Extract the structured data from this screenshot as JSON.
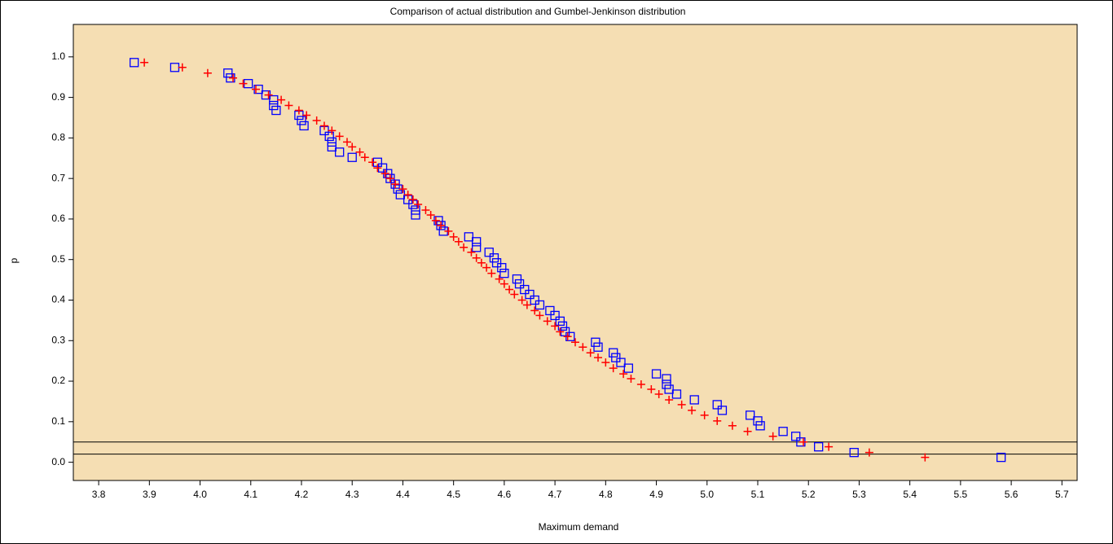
{
  "chart_data": {
    "type": "scatter",
    "title": "Comparison of actual distribution and Gumbel-Jenkinson distribution",
    "xlabel": "Maximum demand",
    "ylabel": "p",
    "background": "#f5deb3",
    "xlim": [
      3.75,
      5.73
    ],
    "ylim": [
      -0.045,
      1.08
    ],
    "xticks": [
      {
        "value": 3.8,
        "label": "3.8"
      },
      3.9,
      {
        "value": 4.0,
        "label": "4.0"
      },
      4.1,
      4.2,
      4.3,
      4.4,
      4.5,
      4.6,
      4.7,
      4.8,
      4.9,
      {
        "value": 5.0,
        "label": "5.0"
      },
      5.1,
      5.2,
      5.3,
      5.4,
      5.5,
      5.6,
      5.7
    ],
    "yticks": [
      {
        "value": 0.0,
        "label": "0.0"
      },
      0.1,
      0.2,
      0.3,
      0.4,
      0.5,
      0.6,
      0.7,
      0.8,
      0.9,
      {
        "value": 1.0,
        "label": "1.0"
      }
    ],
    "hlines": [
      0.05,
      0.02
    ],
    "grid": false,
    "series": [
      {
        "marker": "square",
        "color": "#0000ff",
        "x": [
          3.87,
          3.95,
          4.055,
          4.06,
          4.095,
          4.115,
          4.13,
          4.145,
          4.145,
          4.15,
          4.195,
          4.2,
          4.205,
          4.245,
          4.255,
          4.26,
          4.26,
          4.275,
          4.3,
          4.35,
          4.36,
          4.37,
          4.375,
          4.385,
          4.39,
          4.395,
          4.41,
          4.42,
          4.425,
          4.425,
          4.47,
          4.475,
          4.48,
          4.53,
          4.545,
          4.545,
          4.57,
          4.58,
          4.585,
          4.595,
          4.6,
          4.625,
          4.63,
          4.64,
          4.65,
          4.66,
          4.67,
          4.69,
          4.7,
          4.71,
          4.715,
          4.72,
          4.73,
          4.78,
          4.785,
          4.815,
          4.82,
          4.83,
          4.845,
          4.9,
          4.92,
          4.92,
          4.925,
          4.94,
          4.975,
          5.02,
          5.03,
          5.085,
          5.1,
          5.105,
          5.15,
          5.175,
          5.185,
          5.22,
          5.29,
          5.58
        ],
        "values": [
          0.986,
          0.974,
          0.96,
          0.948,
          0.934,
          0.92,
          0.906,
          0.894,
          0.88,
          0.868,
          0.856,
          0.843,
          0.83,
          0.818,
          0.804,
          0.79,
          0.778,
          0.765,
          0.752,
          0.74,
          0.726,
          0.712,
          0.7,
          0.686,
          0.674,
          0.66,
          0.648,
          0.636,
          0.622,
          0.61,
          0.596,
          0.584,
          0.57,
          0.556,
          0.544,
          0.53,
          0.518,
          0.504,
          0.492,
          0.48,
          0.466,
          0.452,
          0.44,
          0.426,
          0.414,
          0.4,
          0.388,
          0.374,
          0.362,
          0.348,
          0.336,
          0.322,
          0.31,
          0.296,
          0.284,
          0.27,
          0.258,
          0.246,
          0.232,
          0.218,
          0.206,
          0.192,
          0.18,
          0.168,
          0.154,
          0.142,
          0.128,
          0.116,
          0.102,
          0.09,
          0.076,
          0.064,
          0.05,
          0.038,
          0.024,
          0.012
        ]
      },
      {
        "marker": "plus",
        "color": "#ff0000",
        "x": [
          3.89,
          3.965,
          4.015,
          4.065,
          4.085,
          4.11,
          4.135,
          4.16,
          4.175,
          4.195,
          4.21,
          4.23,
          4.245,
          4.26,
          4.275,
          4.29,
          4.3,
          4.315,
          4.325,
          4.34,
          4.35,
          4.365,
          4.375,
          4.385,
          4.4,
          4.41,
          4.42,
          4.43,
          4.445,
          4.455,
          4.465,
          4.475,
          4.49,
          4.5,
          4.51,
          4.52,
          4.535,
          4.545,
          4.555,
          4.565,
          4.575,
          4.59,
          4.6,
          4.61,
          4.62,
          4.635,
          4.645,
          4.66,
          4.67,
          4.685,
          4.7,
          4.71,
          4.725,
          4.74,
          4.755,
          4.77,
          4.785,
          4.8,
          4.815,
          4.835,
          4.85,
          4.87,
          4.89,
          4.905,
          4.925,
          4.95,
          4.97,
          4.995,
          5.02,
          5.05,
          5.08,
          5.13,
          5.19,
          5.24,
          5.32,
          5.43
        ],
        "values": [
          0.986,
          0.974,
          0.96,
          0.948,
          0.934,
          0.92,
          0.906,
          0.894,
          0.88,
          0.868,
          0.856,
          0.843,
          0.83,
          0.818,
          0.804,
          0.79,
          0.778,
          0.765,
          0.752,
          0.74,
          0.726,
          0.712,
          0.7,
          0.686,
          0.674,
          0.66,
          0.648,
          0.636,
          0.622,
          0.61,
          0.596,
          0.584,
          0.57,
          0.556,
          0.544,
          0.53,
          0.518,
          0.504,
          0.492,
          0.48,
          0.466,
          0.452,
          0.44,
          0.426,
          0.414,
          0.4,
          0.388,
          0.374,
          0.362,
          0.348,
          0.336,
          0.322,
          0.31,
          0.296,
          0.284,
          0.27,
          0.258,
          0.246,
          0.232,
          0.218,
          0.206,
          0.192,
          0.18,
          0.168,
          0.154,
          0.142,
          0.128,
          0.116,
          0.102,
          0.09,
          0.076,
          0.064,
          0.05,
          0.038,
          0.024,
          0.012
        ]
      }
    ]
  }
}
